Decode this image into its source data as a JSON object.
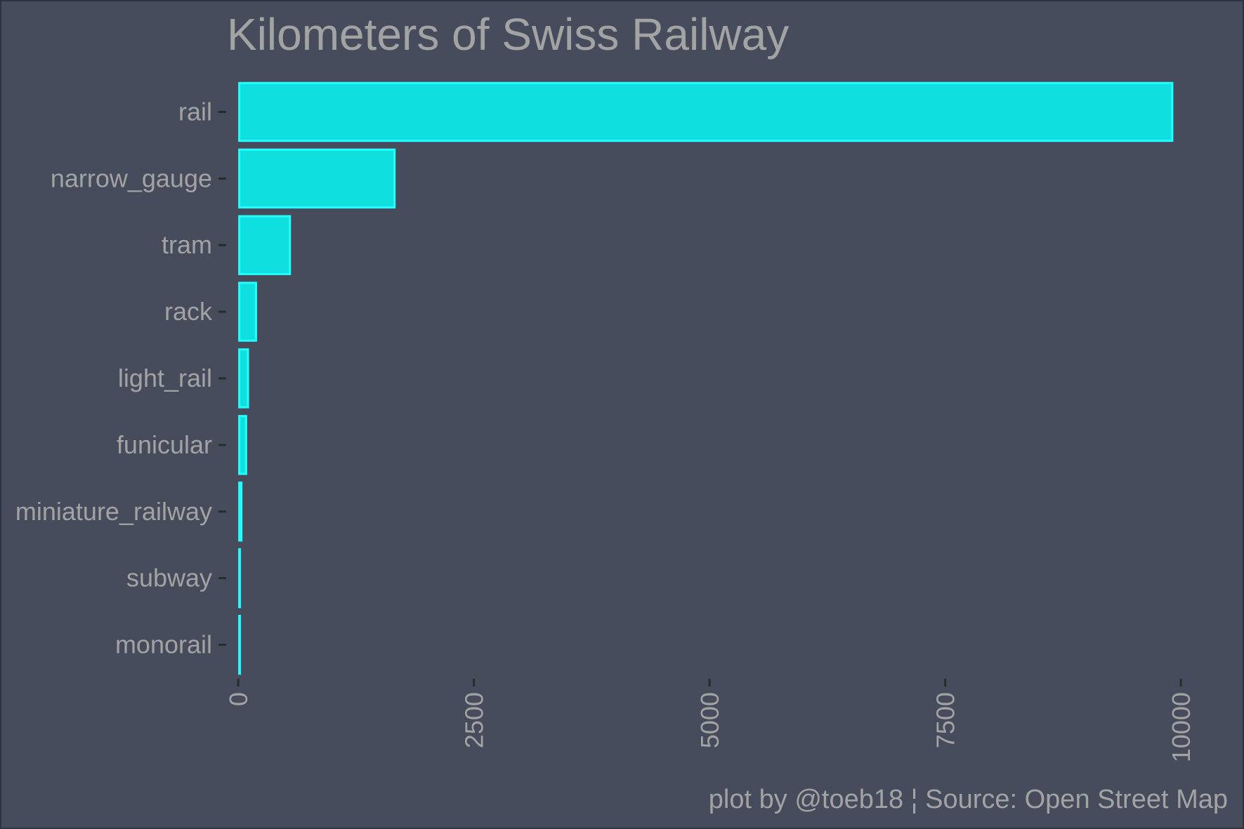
{
  "chart_data": {
    "type": "bar",
    "orientation": "horizontal",
    "title": "Kilometers of Swiss Railway",
    "caption": "plot by @toeb18 ¦ Source: Open Street Map",
    "xlabel": "",
    "ylabel": "",
    "categories": [
      "rail",
      "narrow_gauge",
      "tram",
      "rack",
      "light_rail",
      "funicular",
      "miniature_railway",
      "subway",
      "monorail"
    ],
    "values": [
      9920,
      1670,
      560,
      200,
      115,
      95,
      45,
      20,
      10
    ],
    "xlim": [
      -120,
      10230
    ],
    "x_ticks": [
      0,
      2500,
      5000,
      7500,
      10000
    ],
    "x_tick_labels": [
      "0",
      "2500",
      "5000",
      "7500",
      "10000"
    ],
    "grid": false,
    "legend": "none",
    "colors": {
      "background": "#464c5c",
      "bar_fill": "#10dfe0",
      "bar_outline": "#22ffff",
      "text": "#a3a3a3",
      "ticks": "#2b2b2b"
    }
  }
}
